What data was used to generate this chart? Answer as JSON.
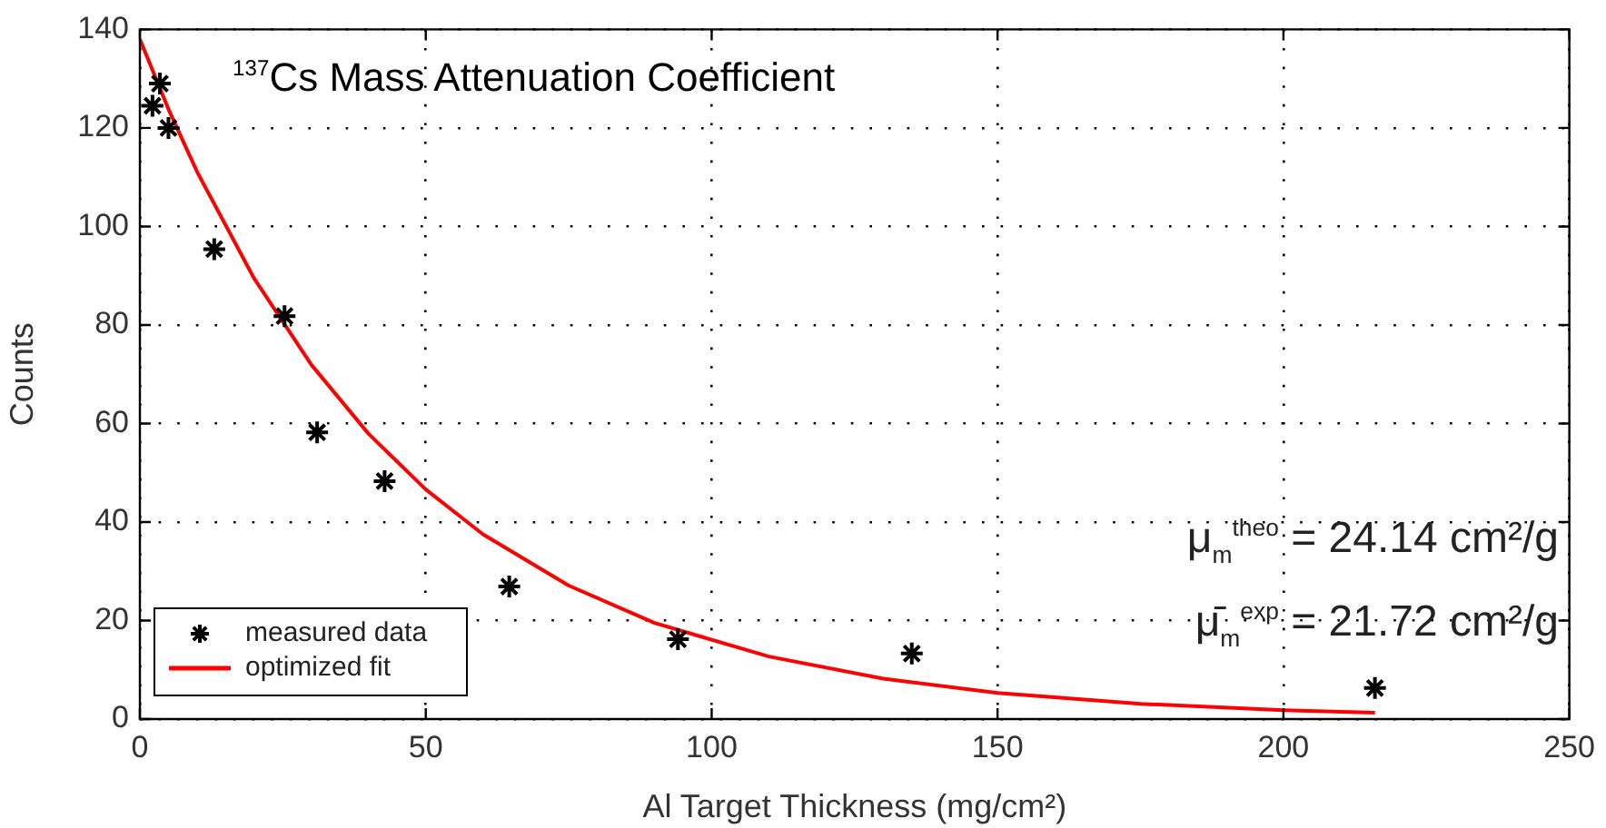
{
  "chart_data": {
    "type": "scatter",
    "title": "$^{137}$Cs Mass Attenuation Coefficient",
    "xlabel": "Al Target Thickness (mg/cm²)",
    "ylabel": "Counts",
    "xlim": [
      0,
      250
    ],
    "xticks": [
      0,
      50,
      100,
      150,
      200,
      250
    ],
    "ylim": [
      0,
      140
    ],
    "yticks": [
      0,
      20,
      40,
      60,
      80,
      100,
      120,
      140
    ],
    "grid": true,
    "legend": "bottom left",
    "series": [
      {
        "name": "measured data",
        "marker": "cross",
        "color": "#000000",
        "x": [
          2.2,
          3.5,
          5,
          13,
          25.3,
          31,
          42.8,
          64.6,
          94.1,
          135,
          216
        ],
        "values": [
          124.5,
          129,
          120,
          95.4,
          81.8,
          58.2,
          48.3,
          26.9,
          16.2,
          13.3,
          6.3
        ]
      },
      {
        "name": "optimized fit",
        "type": "line",
        "marker": "none",
        "line_style": "solid",
        "color": "#ff0000",
        "x": [
          0,
          5,
          10,
          20,
          30,
          40,
          50,
          60,
          75,
          90,
          110,
          130,
          150,
          175,
          200,
          216
        ],
        "values": [
          138,
          123.8,
          111.1,
          89.4,
          71.9,
          57.9,
          46.6,
          37.5,
          27.1,
          19.5,
          12.7,
          8.2,
          5.3,
          3.1,
          1.8,
          1.3
        ]
      }
    ],
    "annotations": [
      "μ$_{m}$$^{theo}$ = 24.14 cm²/g",
      "μ̄$_{m}$$^{exp}$ = 21.72 cm²/g"
    ]
  }
}
